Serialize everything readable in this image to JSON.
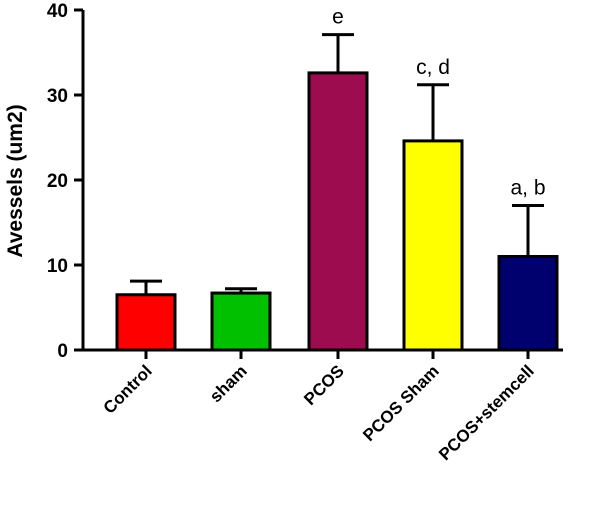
{
  "chart_data": {
    "type": "bar",
    "categories": [
      "Control",
      "sham",
      "PCOS",
      "PCOS Sham",
      "PCOS+stemcell"
    ],
    "values": [
      6.5,
      6.7,
      32.6,
      24.6,
      11.0
    ],
    "errors": [
      1.6,
      0.5,
      4.5,
      6.6,
      6.0
    ],
    "annotations": [
      "",
      "",
      "e",
      "c, d",
      "a, b"
    ],
    "colors": [
      "#ff0000",
      "#00c000",
      "#9c0c4e",
      "#ffff00",
      "#00006e"
    ],
    "ylabel": "Avessels (um2)",
    "ylim": [
      0,
      40
    ],
    "yticks": [
      0,
      10,
      20,
      30,
      40
    ],
    "grid": false
  }
}
